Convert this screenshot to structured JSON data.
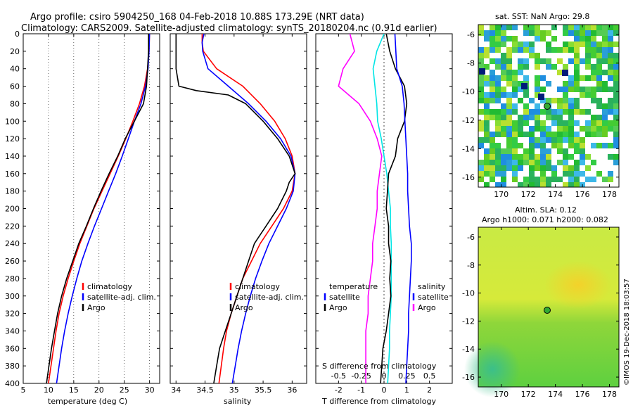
{
  "title": {
    "line1": "Argo profile: csiro 5904250_168 04-Feb-2018 10.88S 173.29E (NRT data)",
    "line2": "Climatology: CARS2009. Satellite-adjusted climatology: synTS_20180204.nc (0.91d earlier)"
  },
  "colors": {
    "climatology": "#ff0000",
    "satellite": "#0000ff",
    "argo": "#000000",
    "temperature_diff": "#ff00ff",
    "salinity_diff": "#00e5e5"
  },
  "depth_ticks": [
    "0",
    "20",
    "40",
    "60",
    "80",
    "100",
    "120",
    "140",
    "160",
    "180",
    "200",
    "220",
    "240",
    "260",
    "280",
    "300",
    "320",
    "340",
    "360",
    "380",
    "400"
  ],
  "legend": {
    "climatology": "climatology",
    "satellite_adj": "satellite-adj. clim.",
    "argo": "Argo",
    "diff_temperature_head": "temperature",
    "diff_salinity_head": "salinity",
    "diff_satellite": "satellite",
    "diff_argo": "Argo",
    "s_diff_title": "S difference from climatology"
  },
  "map_sst": {
    "title": "sat. SST: NaN Argo: 29.8",
    "lat_ticks": [
      "-6",
      "-8",
      "-10",
      "-12",
      "-14",
      "-16"
    ],
    "lon_ticks": [
      "170",
      "172",
      "174",
      "176",
      "178"
    ],
    "argo_position": {
      "lon": 173.29,
      "lat": -10.88
    }
  },
  "map_sla": {
    "title_line1": "Altim. SLA: 0.12",
    "title_line2": "Argo h1000: 0.071 h2000: 0.082",
    "lat_ticks": [
      "-6",
      "-8",
      "-10",
      "-12",
      "-14",
      "-16"
    ],
    "lon_ticks": [
      "170",
      "172",
      "174",
      "176",
      "178"
    ],
    "argo_position": {
      "lon": 173.29,
      "lat": -10.88
    }
  },
  "footer": "©IMOS 19-Dec-2018 18:03:57",
  "chart_data": [
    {
      "type": "line",
      "name": "temperature",
      "xlabel": "temperature (deg C)",
      "ylabel": "",
      "xlim": [
        5,
        32
      ],
      "ylim": [
        0,
        400
      ],
      "y_inverted": true,
      "x_ticks": [
        5,
        10,
        15,
        20,
        25,
        30
      ],
      "series": [
        {
          "name": "climatology",
          "depth": [
            0,
            20,
            40,
            60,
            80,
            100,
            120,
            140,
            160,
            180,
            200,
            220,
            240,
            260,
            280,
            300,
            320,
            340,
            360,
            380,
            400
          ],
          "values": [
            30.0,
            29.9,
            29.6,
            29.0,
            28.0,
            26.7,
            25.3,
            23.8,
            22.2,
            20.6,
            19.0,
            17.6,
            16.2,
            15.0,
            13.9,
            12.9,
            12.1,
            11.5,
            11.0,
            10.5,
            10.0
          ]
        },
        {
          "name": "satellite-adj. clim.",
          "depth": [
            0,
            20,
            40,
            60,
            80,
            100,
            120,
            140,
            160,
            180,
            200,
            220,
            240,
            260,
            280,
            300,
            320,
            340,
            360,
            380,
            400
          ],
          "values": [
            30.0,
            29.9,
            29.7,
            29.2,
            28.3,
            27.0,
            25.8,
            24.6,
            23.3,
            21.9,
            20.5,
            19.1,
            17.8,
            16.6,
            15.6,
            14.7,
            13.9,
            13.2,
            12.6,
            12.1,
            11.6
          ]
        },
        {
          "name": "Argo",
          "depth": [
            0,
            20,
            40,
            60,
            80,
            100,
            120,
            140,
            160,
            180,
            200,
            220,
            240,
            260,
            280,
            300,
            320,
            340,
            360,
            380,
            400
          ],
          "values": [
            29.8,
            29.8,
            29.6,
            29.4,
            28.8,
            27.0,
            25.2,
            23.7,
            22.0,
            20.4,
            18.9,
            17.5,
            16.0,
            14.8,
            13.6,
            12.6,
            11.8,
            11.2,
            10.6,
            10.1,
            9.6
          ]
        }
      ]
    },
    {
      "type": "line",
      "name": "salinity",
      "xlabel": "salinity",
      "ylabel": "",
      "xlim": [
        33.9,
        36.25
      ],
      "ylim": [
        0,
        400
      ],
      "y_inverted": true,
      "x_ticks": [
        34,
        34.5,
        35,
        35.5,
        36
      ],
      "series": [
        {
          "name": "climatology",
          "depth": [
            0,
            10,
            20,
            40,
            60,
            80,
            100,
            120,
            140,
            160,
            180,
            200,
            220,
            240,
            260,
            280,
            300,
            320,
            340,
            360,
            380,
            400
          ],
          "values": [
            34.45,
            34.45,
            34.47,
            34.7,
            35.15,
            35.45,
            35.7,
            35.88,
            36.0,
            36.05,
            36.0,
            35.85,
            35.65,
            35.45,
            35.3,
            35.15,
            35.05,
            34.95,
            34.87,
            34.82,
            34.78,
            34.74
          ]
        },
        {
          "name": "satellite-adj. clim.",
          "depth": [
            0,
            10,
            20,
            40,
            60,
            80,
            100,
            120,
            140,
            160,
            180,
            200,
            220,
            240,
            260,
            280,
            300,
            320,
            340,
            360,
            380,
            400
          ],
          "values": [
            34.48,
            34.45,
            34.46,
            34.55,
            34.9,
            35.25,
            35.55,
            35.8,
            35.98,
            36.05,
            36.02,
            35.9,
            35.75,
            35.6,
            35.48,
            35.37,
            35.28,
            35.2,
            35.13,
            35.07,
            35.02,
            34.97
          ]
        },
        {
          "name": "Argo",
          "depth": [
            0,
            20,
            40,
            60,
            65,
            70,
            80,
            90,
            100,
            120,
            140,
            150,
            160,
            170,
            180,
            200,
            220,
            240,
            260,
            280,
            300,
            320,
            340,
            360,
            380,
            400
          ],
          "values": [
            34.0,
            34.0,
            34.0,
            34.05,
            34.35,
            34.9,
            35.2,
            35.35,
            35.5,
            35.75,
            35.95,
            36.0,
            36.05,
            35.95,
            35.9,
            35.75,
            35.55,
            35.35,
            35.25,
            35.15,
            35.05,
            34.95,
            34.85,
            34.75,
            34.7,
            34.65
          ]
        }
      ]
    },
    {
      "type": "line",
      "name": "differences",
      "xlabel": "T difference from climatology",
      "top_xlabel": "S difference from climatology",
      "xlim": [
        -3,
        3
      ],
      "top_xlim": [
        -0.75,
        0.75
      ],
      "ylim": [
        0,
        400
      ],
      "y_inverted": true,
      "x_ticks": [
        -2,
        -1,
        0,
        1,
        2
      ],
      "top_ticks": [
        "-0.5",
        "-0.25",
        "0",
        "0.25",
        "0.5"
      ],
      "series": [
        {
          "name": "temperature satellite",
          "axis": "T",
          "depth": [
            0,
            20,
            40,
            60,
            80,
            100,
            120,
            140,
            160,
            180,
            200,
            220,
            240,
            260,
            280,
            300,
            320,
            340,
            360,
            380,
            400
          ],
          "values": [
            -1.5,
            -1.3,
            -1.8,
            -2.0,
            -1.1,
            -0.6,
            -0.3,
            -0.1,
            -0.2,
            -0.3,
            -0.3,
            -0.4,
            -0.5,
            -0.5,
            -0.6,
            -0.7,
            -0.7,
            -0.8,
            -0.8,
            -0.8,
            -0.8
          ]
        },
        {
          "name": "salinity satellite",
          "axis": "S",
          "depth": [
            0,
            20,
            40,
            60,
            80,
            100,
            120,
            140,
            160,
            180,
            200,
            220,
            240,
            260,
            280,
            300,
            320,
            340,
            360,
            380,
            400
          ],
          "values": [
            0.0,
            -0.08,
            -0.12,
            -0.1,
            -0.08,
            -0.07,
            -0.03,
            0.0,
            0.03,
            0.05,
            0.07,
            0.07,
            0.08,
            0.08,
            0.08,
            0.08,
            0.07,
            0.06,
            0.06,
            0.05,
            0.04
          ]
        },
        {
          "name": "Argo temperature",
          "axis": "T",
          "depth": [
            0,
            20,
            40,
            60,
            80,
            100,
            120,
            140,
            160,
            180,
            200,
            220,
            240,
            260,
            280,
            300,
            320,
            340,
            360,
            380,
            400
          ],
          "values": [
            0.1,
            0.25,
            0.5,
            0.9,
            1.0,
            0.9,
            0.6,
            0.5,
            0.2,
            0.15,
            0.1,
            0.2,
            0.2,
            0.3,
            0.25,
            0.3,
            0.2,
            0.1,
            -0.05,
            -0.1,
            -0.15
          ]
        },
        {
          "name": "Argo salinity",
          "axis": "S",
          "depth": [
            0,
            20,
            40,
            60,
            80,
            100,
            120,
            140,
            160,
            180,
            200,
            220,
            240,
            260,
            280,
            300,
            320,
            340,
            360,
            380,
            400
          ],
          "values": [
            0.12,
            0.13,
            0.14,
            0.2,
            0.22,
            0.23,
            0.24,
            0.25,
            0.26,
            0.26,
            0.27,
            0.28,
            0.3,
            0.3,
            0.29,
            0.28,
            0.27,
            0.27,
            0.26,
            0.25,
            0.24
          ]
        }
      ]
    }
  ]
}
